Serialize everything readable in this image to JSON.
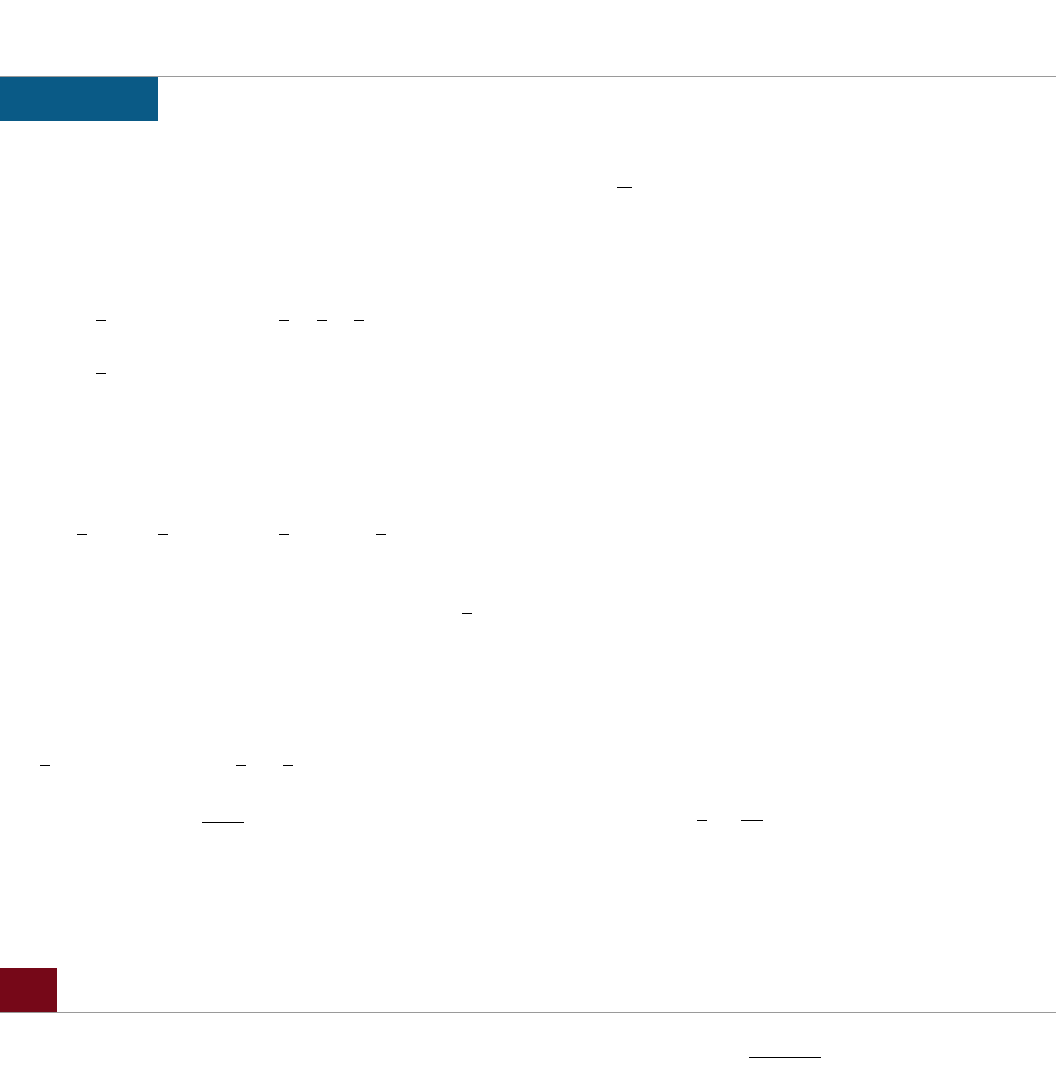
{
  "colors": {
    "header_tab": "#0a5a86",
    "footer_tab": "#760818",
    "rule": "#9a9a9a",
    "fraction_bar": "#000000"
  }
}
